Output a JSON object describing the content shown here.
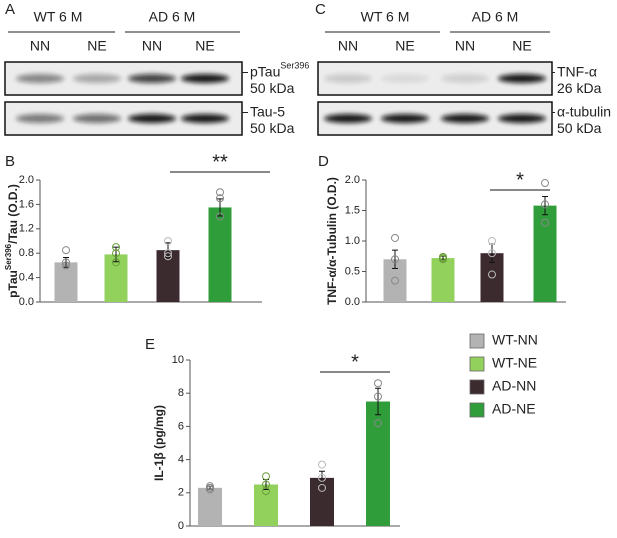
{
  "panels": [
    "A",
    "B",
    "C",
    "D",
    "E"
  ],
  "blots": [
    {
      "groups": [
        "WT 6 M",
        "AD 6 M"
      ],
      "lanes": [
        "NN",
        "NE",
        "NN",
        "NE"
      ],
      "rows": [
        {
          "name": "pTau",
          "sup": "Ser396",
          "size": "50 kDa"
        },
        {
          "name": "Tau-5",
          "size": "50 kDa"
        }
      ]
    },
    {
      "groups": [
        "WT 6 M",
        "AD 6 M"
      ],
      "lanes": [
        "NN",
        "NE",
        "NN",
        "NE"
      ],
      "rows": [
        {
          "name": "TNF-α",
          "size": "26 kDa"
        },
        {
          "name": "α-tubulin",
          "size": "50 kDa"
        }
      ]
    }
  ],
  "legend": [
    {
      "name": "WT-NN",
      "color": "#b3b3b3"
    },
    {
      "name": "WT-NE",
      "color": "#92d15c"
    },
    {
      "name": "AD-NN",
      "color": "#3b2b2f"
    },
    {
      "name": "AD-NE",
      "color": "#2f9e3a"
    }
  ],
  "chart_data": [
    {
      "type": "bar",
      "ylabel": "pTau",
      "ylabel_sup": "Ser396",
      "ylabel_tail": "/Tau (O.D.)",
      "categories": [
        null,
        null,
        null,
        null
      ],
      "values": [
        0.65,
        0.78,
        0.85,
        1.55
      ],
      "errors": [
        0.08,
        0.12,
        0.12,
        0.14
      ],
      "points": [
        [
          0.85,
          0.65,
          0.6
        ],
        [
          0.9,
          0.8,
          0.65
        ],
        [
          1.0,
          0.8,
          0.75
        ],
        [
          1.8,
          1.7,
          1.4
        ]
      ],
      "ylim": [
        0,
        2.0
      ],
      "yticks": [
        {
          "value": 0,
          "label": "0.0"
        },
        0.4,
        0.8,
        1.2,
        1.6,
        {
          "value": 2,
          "label": "2.0"
        }
      ],
      "significance": "**"
    },
    {
      "type": "bar",
      "ylabel": "TNF-α/α-Tubulin (O.D.)",
      "categories": [
        null,
        null,
        null,
        null
      ],
      "values": [
        0.7,
        0.72,
        0.8,
        1.58
      ],
      "errors": [
        0.15,
        0.03,
        0.15,
        0.15
      ],
      "points": [
        [
          1.05,
          0.7,
          0.35
        ],
        [
          0.74,
          0.72,
          0.7
        ],
        [
          1.0,
          0.8,
          0.45
        ],
        [
          1.95,
          1.6,
          1.3
        ]
      ],
      "ylim": [
        0,
        2.0
      ],
      "yticks": [
        {
          "value": 0,
          "label": "0.0"
        },
        0.5,
        {
          "value": 1,
          "label": "1.0"
        },
        1.5,
        {
          "value": 2,
          "label": "2.0"
        }
      ],
      "significance": "*"
    },
    {
      "type": "bar",
      "ylabel": "IL-1β (pg/mg)",
      "categories": [
        null,
        null,
        null,
        null
      ],
      "values": [
        2.3,
        2.5,
        2.9,
        7.5
      ],
      "errors": [
        0.1,
        0.3,
        0.4,
        0.8
      ],
      "points": [
        [
          2.4,
          2.3,
          2.2
        ],
        [
          3.0,
          2.5,
          2.1
        ],
        [
          3.7,
          2.9,
          2.3
        ],
        [
          8.6,
          7.8,
          6.2
        ]
      ],
      "ylim": [
        0,
        10
      ],
      "yticks": [
        0,
        2,
        4,
        6,
        8,
        10
      ],
      "significance": "*"
    }
  ]
}
